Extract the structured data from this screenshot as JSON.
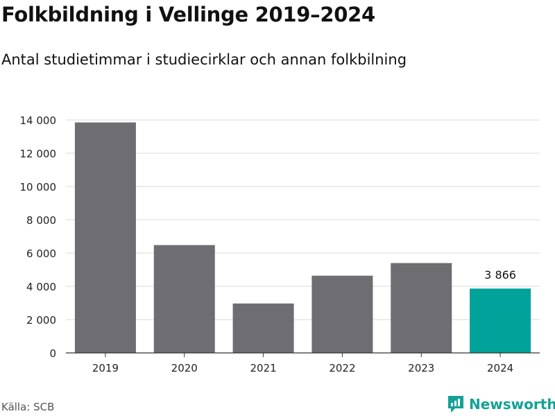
{
  "title": "Folkbildning i Vellinge 2019–2024",
  "subtitle": "Antal studietimmar i studiecirklar och annan folkbilning",
  "source": "Källa: SCB",
  "brand": "Newsworthy",
  "colors": {
    "bar": "#6e6d72",
    "highlight": "#00a29a",
    "grid": "#d9d9d9",
    "axis": "#333333",
    "brand": "#13a197"
  },
  "chart_data": {
    "type": "bar",
    "categories": [
      "2019",
      "2020",
      "2021",
      "2022",
      "2023",
      "2024"
    ],
    "values": [
      13850,
      6480,
      2970,
      4640,
      5400,
      3866
    ],
    "highlight_index": 5,
    "data_labels": {
      "5": "3 866"
    },
    "ylim": [
      0,
      14000
    ],
    "yticks": [
      0,
      2000,
      4000,
      6000,
      8000,
      10000,
      12000,
      14000
    ],
    "ytick_labels": [
      "0",
      "2 000",
      "4 000",
      "6 000",
      "8 000",
      "10 000",
      "12 000",
      "14 000"
    ],
    "xlabel": "",
    "ylabel": "",
    "grid": true,
    "legend": "none"
  }
}
